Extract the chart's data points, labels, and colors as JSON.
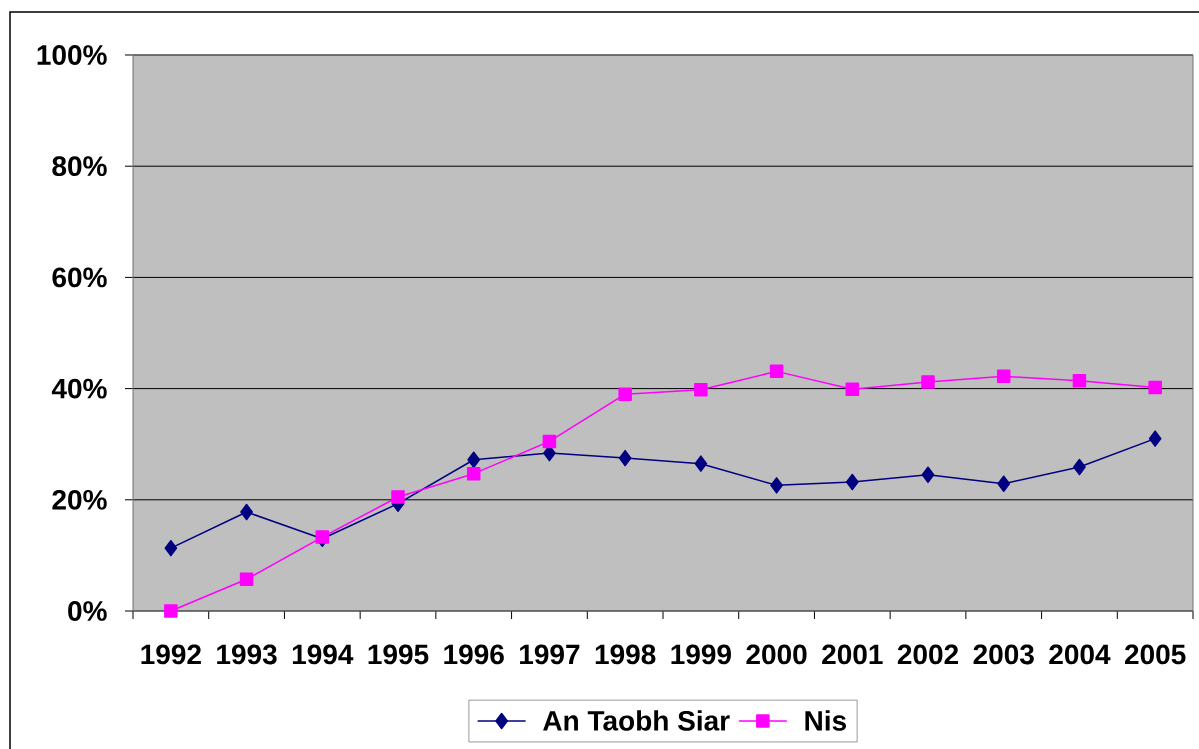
{
  "chart_data": {
    "type": "line",
    "categories": [
      "1992",
      "1993",
      "1994",
      "1995",
      "1996",
      "1997",
      "1998",
      "1999",
      "2000",
      "2001",
      "2002",
      "2003",
      "2004",
      "2005"
    ],
    "series": [
      {
        "name": "An Taobh Siar",
        "color": "#000080",
        "marker": "diamond",
        "values": [
          11.3,
          17.8,
          13.0,
          19.3,
          27.2,
          28.4,
          27.5,
          26.5,
          22.6,
          23.2,
          24.5,
          22.9,
          25.9,
          31.0
        ]
      },
      {
        "name": "Nis",
        "color": "#ff00ff",
        "marker": "square",
        "values": [
          0,
          5.7,
          13.3,
          20.5,
          24.7,
          30.5,
          39.0,
          39.8,
          43.1,
          39.9,
          41.2,
          42.2,
          41.4,
          40.2
        ]
      }
    ],
    "ylim": [
      0,
      100
    ],
    "yticks": [
      {
        "value": 0,
        "label": "0%"
      },
      {
        "value": 20,
        "label": "20%"
      },
      {
        "value": 40,
        "label": "40%"
      },
      {
        "value": 60,
        "label": "60%"
      },
      {
        "value": 80,
        "label": "80%"
      },
      {
        "value": 100,
        "label": "100%"
      }
    ],
    "grid": "y",
    "legend": "bottom"
  }
}
